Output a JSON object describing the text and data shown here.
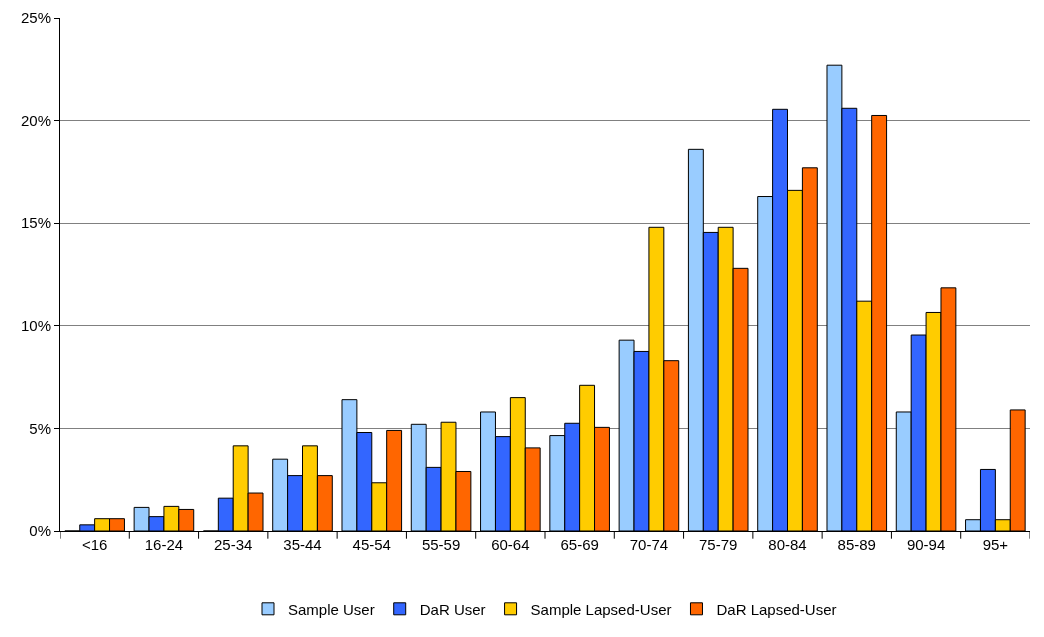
{
  "chart_data": {
    "type": "bar",
    "categories": [
      "<16",
      "16-24",
      "25-34",
      "35-44",
      "45-54",
      "55-59",
      "60-64",
      "65-69",
      "70-74",
      "75-79",
      "80-84",
      "85-89",
      "90-94",
      "95+"
    ],
    "series": [
      {
        "name": "Sample User",
        "color": "#99ccff",
        "values": [
          0,
          1.15,
          0,
          3.5,
          6.4,
          5.2,
          5.8,
          4.65,
          9.3,
          18.6,
          16.3,
          22.7,
          5.8,
          0.55
        ]
      },
      {
        "name": "DaR User",
        "color": "#3366ff",
        "values": [
          0.3,
          0.7,
          1.6,
          2.7,
          4.8,
          3.1,
          4.6,
          5.25,
          8.75,
          14.55,
          20.55,
          20.6,
          9.55,
          3.0
        ]
      },
      {
        "name": "Sample Lapsed-User",
        "color": "#ffcc00",
        "values": [
          0.6,
          1.2,
          4.15,
          4.15,
          2.35,
          5.3,
          6.5,
          7.1,
          14.8,
          14.8,
          16.6,
          11.2,
          10.65,
          0.55
        ]
      },
      {
        "name": "DaR Lapsed-User",
        "color": "#ff6600",
        "values": [
          0.6,
          1.05,
          1.85,
          2.7,
          4.9,
          2.9,
          4.05,
          5.05,
          8.3,
          12.8,
          17.7,
          20.25,
          11.85,
          5.9
        ]
      }
    ],
    "ylim": [
      0,
      25
    ],
    "yticks": [
      {
        "value": 0,
        "label": "0%"
      },
      {
        "value": 5,
        "label": "5%"
      },
      {
        "value": 10,
        "label": "10%"
      },
      {
        "value": 15,
        "label": "15%"
      },
      {
        "value": 20,
        "label": "20%"
      },
      {
        "value": 25,
        "label": "25%"
      }
    ],
    "grid": "y",
    "legend": "bottom"
  }
}
